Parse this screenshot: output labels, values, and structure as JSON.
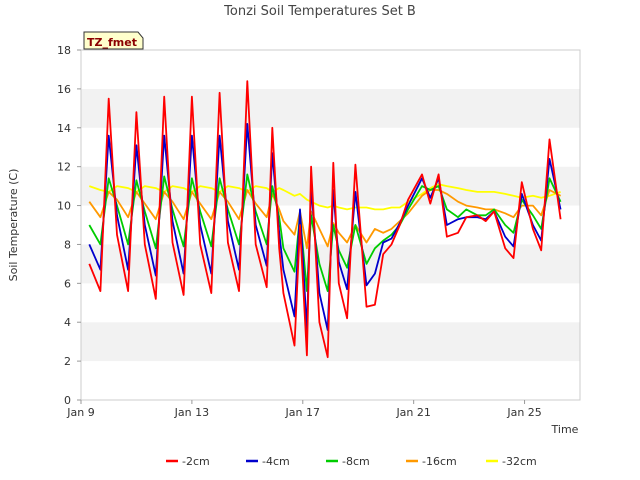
{
  "chart_data": {
    "type": "line",
    "title": "Tonzi Soil Temperatures Set B",
    "xlabel": "Time",
    "ylabel": "Soil Temperature (C)",
    "badge": "TZ_fmet",
    "x_ticks": [
      "Jan 9",
      "Jan 13",
      "Jan 17",
      "Jan 21",
      "Jan 25"
    ],
    "xlim": [
      9,
      27
    ],
    "ylim": [
      0,
      18
    ],
    "y_ticks": [
      "0",
      "2",
      "4",
      "6",
      "8",
      "10",
      "12",
      "14",
      "16",
      "18"
    ],
    "grid": "horizontal bands",
    "legend_position": "bottom",
    "series": [
      {
        "name": "-2cm",
        "color": "#ff0000",
        "x": [
          9.3,
          9.7,
          10.0,
          10.3,
          10.7,
          11.0,
          11.3,
          11.7,
          12.0,
          12.3,
          12.7,
          13.0,
          13.3,
          13.7,
          14.0,
          14.3,
          14.7,
          15.0,
          15.3,
          15.7,
          15.9,
          16.15,
          16.3,
          16.7,
          16.9,
          17.15,
          17.3,
          17.6,
          17.9,
          18.1,
          18.3,
          18.6,
          18.9,
          19.3,
          19.6,
          19.9,
          20.2,
          20.5,
          20.8,
          21.3,
          21.6,
          21.9,
          22.2,
          22.6,
          22.9,
          23.3,
          23.6,
          23.9,
          24.3,
          24.6,
          24.9,
          25.3,
          25.6,
          25.9,
          26.3
        ],
        "y": [
          7.0,
          5.6,
          15.5,
          8.5,
          5.6,
          14.8,
          8.0,
          5.2,
          15.6,
          8.1,
          5.4,
          15.6,
          8.0,
          5.5,
          15.8,
          8.1,
          5.6,
          16.4,
          8.0,
          5.8,
          14.0,
          7.8,
          5.5,
          2.8,
          9.0,
          2.3,
          12.0,
          4.0,
          2.2,
          12.2,
          6.0,
          4.2,
          12.1,
          4.8,
          4.9,
          7.5,
          8.0,
          9.0,
          10.3,
          11.6,
          10.1,
          11.6,
          8.4,
          8.6,
          9.4,
          9.5,
          9.2,
          9.7,
          7.8,
          7.3,
          11.2,
          8.8,
          7.7,
          13.4,
          9.3
        ]
      },
      {
        "name": "-4cm",
        "color": "#0000cc",
        "x": [
          9.3,
          9.7,
          10.0,
          10.3,
          10.7,
          11.0,
          11.3,
          11.7,
          12.0,
          12.3,
          12.7,
          13.0,
          13.3,
          13.7,
          14.0,
          14.3,
          14.7,
          15.0,
          15.3,
          15.7,
          15.9,
          16.15,
          16.3,
          16.7,
          16.9,
          17.15,
          17.3,
          17.6,
          17.9,
          18.1,
          18.3,
          18.6,
          18.9,
          19.3,
          19.6,
          19.9,
          20.2,
          20.5,
          20.8,
          21.3,
          21.6,
          21.9,
          22.2,
          22.6,
          22.9,
          23.3,
          23.6,
          23.9,
          24.3,
          24.6,
          24.9,
          25.3,
          25.6,
          25.9,
          26.3
        ],
        "y": [
          8.0,
          6.7,
          13.6,
          9.5,
          6.7,
          13.1,
          9.0,
          6.4,
          13.6,
          9.2,
          6.5,
          13.6,
          9.0,
          6.5,
          13.6,
          9.2,
          6.7,
          14.2,
          9.0,
          6.9,
          12.7,
          8.6,
          6.7,
          4.3,
          9.8,
          3.6,
          11.0,
          5.5,
          3.6,
          10.8,
          7.1,
          5.7,
          10.7,
          5.9,
          6.5,
          8.1,
          8.3,
          9.1,
          10.0,
          11.4,
          10.4,
          11.4,
          9.0,
          9.3,
          9.4,
          9.4,
          9.3,
          9.7,
          8.4,
          7.9,
          10.6,
          9.0,
          8.2,
          12.4,
          9.8
        ]
      },
      {
        "name": "-8cm",
        "color": "#00cc00",
        "x": [
          9.3,
          9.7,
          10.0,
          10.3,
          10.7,
          11.0,
          11.3,
          11.7,
          12.0,
          12.3,
          12.7,
          13.0,
          13.3,
          13.7,
          14.0,
          14.3,
          14.7,
          15.0,
          15.3,
          15.7,
          15.9,
          16.15,
          16.3,
          16.7,
          16.9,
          17.15,
          17.3,
          17.6,
          17.9,
          18.1,
          18.3,
          18.6,
          18.9,
          19.3,
          19.6,
          19.9,
          20.2,
          20.5,
          20.8,
          21.3,
          21.6,
          21.9,
          22.2,
          22.6,
          22.9,
          23.3,
          23.6,
          23.9,
          24.3,
          24.6,
          24.9,
          25.3,
          25.6,
          25.9,
          26.3
        ],
        "y": [
          9.0,
          8.0,
          11.4,
          10.0,
          8.0,
          11.3,
          9.7,
          7.8,
          11.5,
          9.8,
          7.9,
          11.4,
          9.7,
          7.9,
          11.4,
          9.8,
          8.0,
          11.6,
          9.7,
          8.0,
          11.0,
          9.4,
          7.8,
          6.6,
          9.5,
          5.6,
          9.5,
          7.0,
          5.6,
          9.0,
          7.7,
          6.8,
          9.0,
          7.0,
          7.8,
          8.2,
          8.5,
          9.0,
          9.8,
          11.0,
          10.8,
          11.0,
          9.8,
          9.4,
          9.8,
          9.5,
          9.5,
          9.8,
          9.0,
          8.6,
          10.3,
          9.5,
          8.8,
          11.4,
          10.2
        ]
      },
      {
        "name": "-16cm",
        "color": "#ff9900",
        "x": [
          9.3,
          9.7,
          10.0,
          10.3,
          10.7,
          11.0,
          11.3,
          11.7,
          12.0,
          12.3,
          12.7,
          13.0,
          13.3,
          13.7,
          14.0,
          14.3,
          14.7,
          15.0,
          15.3,
          15.7,
          15.9,
          16.15,
          16.3,
          16.7,
          16.9,
          17.15,
          17.3,
          17.6,
          17.9,
          18.1,
          18.3,
          18.6,
          18.9,
          19.3,
          19.6,
          19.9,
          20.2,
          20.5,
          20.8,
          21.3,
          21.6,
          21.9,
          22.2,
          22.6,
          22.9,
          23.3,
          23.6,
          23.9,
          24.3,
          24.6,
          24.9,
          25.3,
          25.6,
          25.9,
          26.3
        ],
        "y": [
          10.2,
          9.4,
          10.7,
          10.3,
          9.4,
          10.7,
          10.1,
          9.3,
          10.7,
          10.2,
          9.3,
          10.7,
          10.1,
          9.3,
          10.7,
          10.2,
          9.3,
          10.8,
          10.1,
          9.4,
          10.6,
          9.8,
          9.2,
          8.5,
          9.7,
          7.8,
          9.7,
          8.8,
          7.9,
          9.1,
          8.6,
          8.1,
          9.0,
          8.1,
          8.8,
          8.6,
          8.8,
          9.2,
          9.6,
          10.5,
          10.8,
          10.8,
          10.6,
          10.2,
          10.0,
          9.9,
          9.8,
          9.8,
          9.6,
          9.4,
          10.0,
          10.0,
          9.5,
          10.8,
          10.5
        ]
      },
      {
        "name": "-32cm",
        "color": "#ffff00",
        "x": [
          9.3,
          9.7,
          10.0,
          10.3,
          10.7,
          11.0,
          11.3,
          11.7,
          12.0,
          12.3,
          12.7,
          13.0,
          13.3,
          13.7,
          14.0,
          14.3,
          14.7,
          15.0,
          15.3,
          15.7,
          15.9,
          16.15,
          16.3,
          16.7,
          16.9,
          17.15,
          17.3,
          17.6,
          17.9,
          18.1,
          18.3,
          18.6,
          18.9,
          19.3,
          19.6,
          19.9,
          20.2,
          20.5,
          20.8,
          21.3,
          21.6,
          21.9,
          22.2,
          22.6,
          22.9,
          23.3,
          23.6,
          23.9,
          24.3,
          24.6,
          24.9,
          25.3,
          25.6,
          25.9,
          26.3
        ],
        "y": [
          11.0,
          10.8,
          10.7,
          11.0,
          10.9,
          10.7,
          11.0,
          10.9,
          10.7,
          11.0,
          10.9,
          10.7,
          11.0,
          10.9,
          10.7,
          11.0,
          10.9,
          10.7,
          11.0,
          10.9,
          10.7,
          10.9,
          10.8,
          10.5,
          10.6,
          10.3,
          10.2,
          10.0,
          9.9,
          10.0,
          9.9,
          9.8,
          9.9,
          9.9,
          9.8,
          9.8,
          9.9,
          9.9,
          10.2,
          10.6,
          10.9,
          11.1,
          11.0,
          10.9,
          10.8,
          10.7,
          10.7,
          10.7,
          10.6,
          10.5,
          10.4,
          10.5,
          10.4,
          10.5,
          10.7
        ]
      }
    ]
  }
}
